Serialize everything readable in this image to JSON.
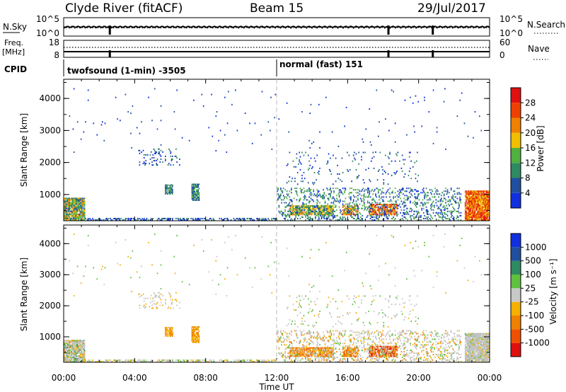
{
  "header": {
    "station": "Clyde River (fitACF)",
    "beam": "Beam 15",
    "date": "29/Jul/2017"
  },
  "top_panels": {
    "nsky_label": "N.Sky",
    "nsky_ticks": [
      "10^5",
      "10^0"
    ],
    "nsearch_label": "N.Search",
    "nsearch_ticks": [
      "10^5",
      "10^0"
    ],
    "freq_label_1": "Freq.",
    "freq_label_2": "[MHz]",
    "freq_ticks": [
      "18",
      "8"
    ],
    "nave_label": "Nave",
    "nave_ticks": [
      "60",
      "0"
    ],
    "cpid_label": "CPID",
    "cpid_modes": [
      {
        "label": "twofsound (1-min) -3505",
        "start_hour": 0
      },
      {
        "label": "normal (fast) 151",
        "start_hour": 12
      }
    ],
    "gaps_hours": [
      2.6,
      18.3,
      20.8
    ]
  },
  "chart_data": [
    {
      "type": "heatmap",
      "name": "Power",
      "ylabel": "Slant Range [km]",
      "yticks": [
        1000,
        2000,
        3000,
        4000
      ],
      "ylim": [
        180,
        4600
      ],
      "colorbar_label": "Power [dB]",
      "colorbar_ticks": [
        "4",
        "8",
        "12",
        "16",
        "20",
        "24",
        "28"
      ],
      "colors": [
        "#1030e0",
        "#204fa0",
        "#2e8a60",
        "#50b040",
        "#f0c000",
        "#f08000",
        "#f04000",
        "#e01010"
      ]
    },
    {
      "type": "heatmap",
      "name": "Velocity",
      "ylabel": "Slant Range [km]",
      "yticks": [
        1000,
        2000,
        3000,
        4000
      ],
      "ylim": [
        180,
        4600
      ],
      "xlabel": "Time UT",
      "xticks": [
        "00:00",
        "04:00",
        "08:00",
        "12:00",
        "16:00",
        "20:00",
        "00:00"
      ],
      "xlim": [
        0,
        24
      ],
      "colorbar_label": "Velocity [m s⁻¹]",
      "colorbar_ticks": [
        "-1000",
        "-500",
        "-100",
        "-25",
        "25",
        "100",
        "500",
        "1000"
      ],
      "colors": [
        "#e01010",
        "#f05000",
        "#f08000",
        "#f5b000",
        "#c8c8c8",
        "#60c040",
        "#2e8a60",
        "#204fa0",
        "#1030e0"
      ],
      "ground_scatter_color": "#c0c0c0"
    }
  ]
}
